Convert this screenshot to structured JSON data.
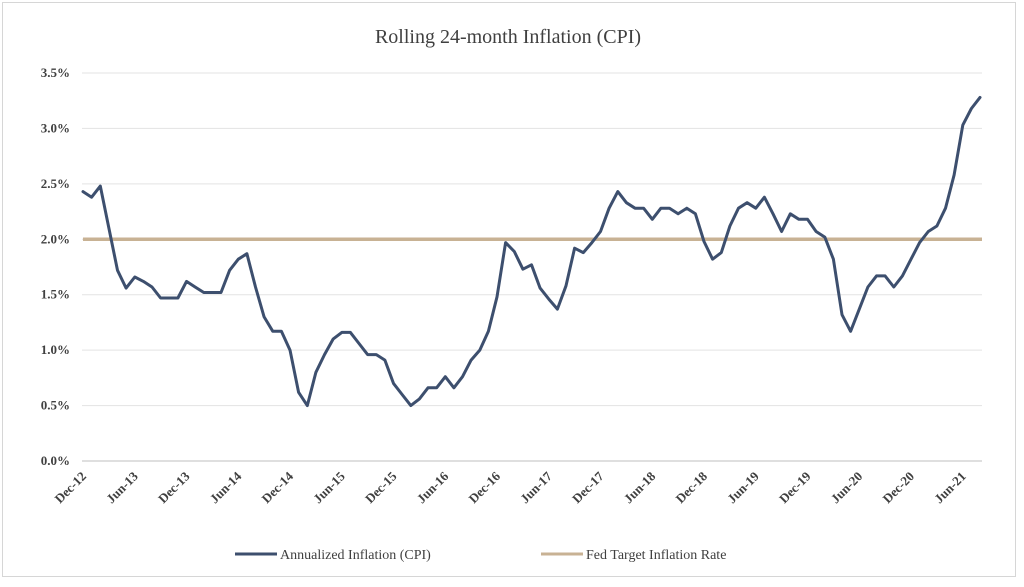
{
  "chart_data": {
    "type": "line",
    "title": "Rolling 24-month Inflation (CPI)",
    "xlabel": "",
    "ylabel": "",
    "ylim": [
      0,
      3.5
    ],
    "y_tick_values": [
      0.0,
      0.5,
      1.0,
      1.5,
      2.0,
      2.5,
      3.0,
      3.5
    ],
    "y_tick_labels": [
      "0.0%",
      "0.5%",
      "1.0%",
      "1.5%",
      "2.0%",
      "2.5%",
      "3.0%",
      "3.5%"
    ],
    "x_tick_labels": [
      "Dec-12",
      "Jun-13",
      "Dec-13",
      "Jun-14",
      "Dec-14",
      "Jun-15",
      "Dec-15",
      "Jun-16",
      "Dec-16",
      "Jun-17",
      "Dec-17",
      "Jun-18",
      "Dec-18",
      "Jun-19",
      "Dec-19",
      "Jun-20",
      "Dec-20",
      "Jun-21"
    ],
    "grid": "horizontal",
    "legend_position": "bottom",
    "series": [
      {
        "name": "Annualized Inflation (CPI)",
        "color": "#3d4f6e",
        "values": [
          2.43,
          2.38,
          2.48,
          2.1,
          1.72,
          1.56,
          1.66,
          1.62,
          1.57,
          1.47,
          1.47,
          1.47,
          1.62,
          1.57,
          1.52,
          1.52,
          1.52,
          1.72,
          1.82,
          1.87,
          1.57,
          1.3,
          1.17,
          1.17,
          1.0,
          0.62,
          0.5,
          0.8,
          0.96,
          1.1,
          1.16,
          1.16,
          1.06,
          0.96,
          0.96,
          0.91,
          0.7,
          0.6,
          0.5,
          0.56,
          0.66,
          0.66,
          0.76,
          0.66,
          0.76,
          0.91,
          1.0,
          1.17,
          1.48,
          1.97,
          1.89,
          1.73,
          1.77,
          1.56,
          1.46,
          1.37,
          1.58,
          1.92,
          1.88,
          1.97,
          2.07,
          2.28,
          2.43,
          2.33,
          2.28,
          2.28,
          2.18,
          2.28,
          2.28,
          2.23,
          2.28,
          2.23,
          1.98,
          1.82,
          1.88,
          2.12,
          2.28,
          2.33,
          2.28,
          2.38,
          2.23,
          2.07,
          2.23,
          2.18,
          2.18,
          2.07,
          2.02,
          1.82,
          1.32,
          1.17,
          1.37,
          1.57,
          1.67,
          1.67,
          1.57,
          1.67,
          1.82,
          1.97,
          2.07,
          2.12,
          2.28,
          2.58,
          3.03,
          3.18,
          3.28
        ]
      },
      {
        "name": "Fed Target Inflation Rate",
        "color": "#c8b294",
        "values": [
          2.0,
          2.0
        ]
      }
    ]
  }
}
